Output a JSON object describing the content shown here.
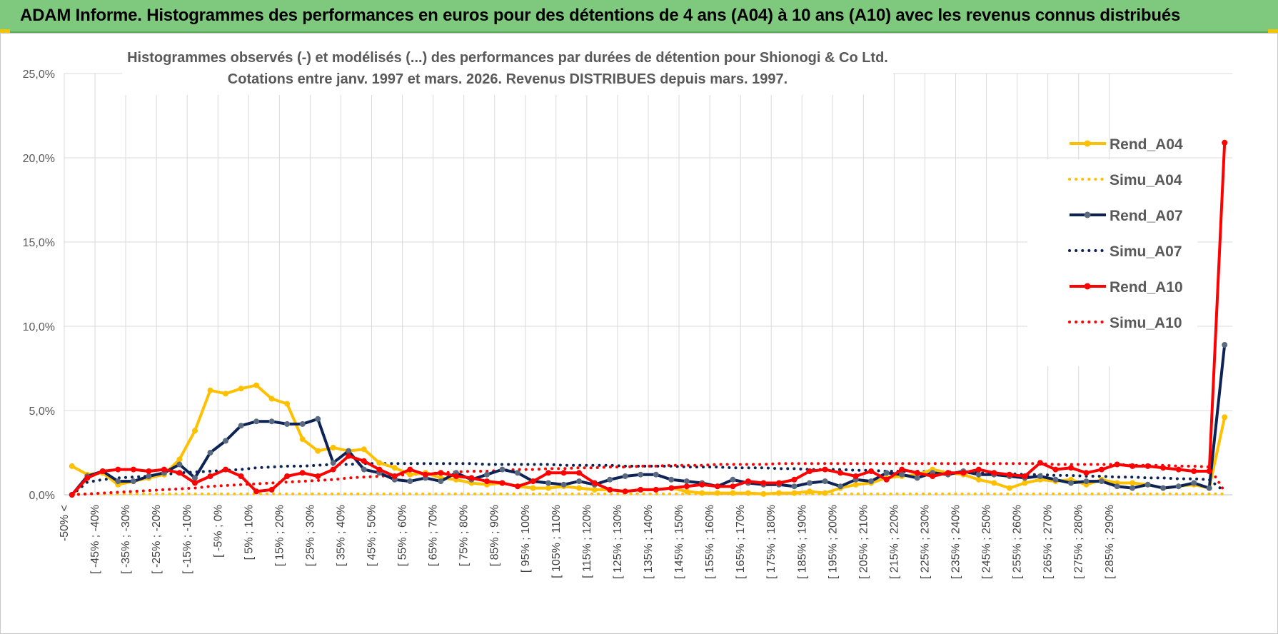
{
  "banner": {
    "title": "ADAM Informe. Histogrammes des performances en euros pour des détentions de 4 ans (A04) à 10 ans (A10) avec les revenus connus distribués",
    "color": "#7fc97f"
  },
  "chart_data": {
    "type": "line",
    "title_line1": "Histogrammes observés (-) et modélisés (...) des performances par durées de détention pour Shionogi & Co Ltd.",
    "title_line2": "Cotations entre janv. 1997 et mars. 2026.  Revenus DISTRIBUES depuis mars. 1997.",
    "xlabel": "",
    "ylabel": "",
    "ylim": [
      0,
      25
    ],
    "y_ticks": [
      "0,0%",
      "5,0%",
      "10,0%",
      "15,0%",
      "20,0%",
      "25,0%"
    ],
    "grid": true,
    "legend_position": "right",
    "x_tick_labels": [
      "-50% <",
      "[ -45% ; -40%",
      "[ -35% ; -30%",
      "[ -25% ; -20%",
      "[ -15% ; -10%",
      "[ -5% ; 0%",
      "[ 5% ; 10%",
      "[ 15% ; 20%",
      "[ 25% ; 30%",
      "[ 35% ; 40%",
      "[ 45% ; 50%",
      "[ 55% ; 60%",
      "[ 65% ; 70%",
      "[ 75% ; 80%",
      "[ 85% ; 90%",
      "[ 95% ; 100%",
      "[ 105% ; 110%",
      "[ 115% ; 120%",
      "[ 125% ; 130%",
      "[ 135% ; 140%",
      "[ 145% ; 150%",
      "[ 155% ; 160%",
      "[ 165% ; 170%",
      "[ 175% ; 180%",
      "[ 185% ; 190%",
      "[ 195% ; 200%",
      "[ 205% ; 210%",
      "[ 215% ; 220%",
      "[ 225% ; 230%",
      "[ 235% ; 240%",
      "[ 245% ; 250%",
      "[ 255% ; 260%",
      "[ 265% ; 270%",
      "[ 275% ; 280%",
      "[ 285% ; 290%"
    ],
    "series": [
      {
        "name": "Rend_A04",
        "style": "solid",
        "color": "#ffc000",
        "values": [
          1.7,
          1.2,
          1.3,
          0.6,
          0.8,
          1.0,
          1.2,
          2.1,
          3.8,
          6.2,
          6.0,
          6.3,
          6.5,
          5.7,
          5.4,
          3.3,
          2.6,
          2.8,
          2.6,
          2.7,
          1.9,
          1.6,
          1.2,
          1.3,
          1.0,
          0.9,
          0.7,
          0.6,
          0.7,
          0.5,
          0.4,
          0.4,
          0.5,
          0.4,
          0.3,
          0.3,
          0.2,
          0.3,
          0.3,
          0.4,
          0.2,
          0.1,
          0.1,
          0.1,
          0.1,
          0.05,
          0.1,
          0.1,
          0.2,
          0.1,
          0.4,
          0.6,
          0.7,
          1.0,
          1.1,
          1.2,
          1.5,
          1.3,
          1.2,
          0.9,
          0.7,
          0.4,
          0.7,
          0.9,
          0.8,
          0.9,
          0.6,
          0.9,
          0.7,
          0.7,
          0.6,
          0.4,
          0.5,
          0.6,
          0.4,
          4.6
        ]
      },
      {
        "name": "Simu_A04",
        "style": "dotted",
        "color": "#ffc000",
        "values": [
          0.05,
          0.05,
          0.05,
          0.05,
          0.05,
          0.05,
          0.05,
          0.05,
          0.05,
          0.05,
          0.05,
          0.05,
          0.05,
          0.05,
          0.05,
          0.05,
          0.05,
          0.05,
          0.05,
          0.05,
          0.05,
          0.05,
          0.05,
          0.05,
          0.05,
          0.05,
          0.05,
          0.05,
          0.05,
          0.05,
          0.05,
          0.05,
          0.05,
          0.05,
          0.05,
          0.05,
          0.05,
          0.05,
          0.05,
          0.05,
          0.05,
          0.05,
          0.05,
          0.05,
          0.05,
          0.05,
          0.05,
          0.05,
          0.05,
          0.05,
          0.05,
          0.05,
          0.05,
          0.05,
          0.05,
          0.05,
          0.05,
          0.05,
          0.05,
          0.05,
          0.05,
          0.05,
          0.05,
          0.05,
          0.05,
          0.05,
          0.05,
          0.05,
          0.05,
          0.05,
          0.05,
          0.05,
          0.05,
          0.05,
          0.05,
          0.05
        ]
      },
      {
        "name": "Rend_A07",
        "style": "solid",
        "color": "#0d2356",
        "values": [
          0.0,
          1.1,
          1.4,
          0.8,
          0.8,
          1.1,
          1.3,
          1.8,
          1.0,
          2.5,
          3.2,
          4.1,
          4.35,
          4.35,
          4.2,
          4.2,
          4.5,
          1.9,
          2.6,
          1.5,
          1.3,
          0.9,
          0.8,
          1.0,
          0.8,
          1.3,
          0.9,
          1.2,
          1.5,
          1.3,
          0.8,
          0.7,
          0.6,
          0.8,
          0.6,
          0.9,
          1.1,
          1.2,
          1.2,
          0.9,
          0.8,
          0.7,
          0.5,
          0.9,
          0.7,
          0.6,
          0.6,
          0.5,
          0.7,
          0.8,
          0.5,
          0.9,
          0.8,
          1.3,
          1.2,
          1.0,
          1.3,
          1.2,
          1.4,
          1.2,
          1.2,
          1.1,
          1.0,
          1.1,
          0.9,
          0.7,
          0.8,
          0.8,
          0.5,
          0.4,
          0.6,
          0.4,
          0.5,
          0.7,
          0.4,
          8.9
        ]
      },
      {
        "name": "Simu_A07",
        "style": "dotted",
        "color": "#0d2356",
        "values": [
          0.0,
          0.75,
          0.9,
          1.0,
          1.05,
          1.1,
          1.2,
          1.3,
          1.35,
          1.4,
          1.45,
          1.5,
          1.6,
          1.65,
          1.7,
          1.7,
          1.75,
          1.8,
          1.8,
          1.85,
          1.85,
          1.85,
          1.85,
          1.85,
          1.85,
          1.85,
          1.85,
          1.8,
          1.8,
          1.8,
          1.8,
          1.8,
          1.75,
          1.75,
          1.75,
          1.75,
          1.7,
          1.7,
          1.7,
          1.7,
          1.65,
          1.65,
          1.65,
          1.6,
          1.6,
          1.6,
          1.55,
          1.55,
          1.5,
          1.5,
          1.5,
          1.45,
          1.45,
          1.4,
          1.4,
          1.4,
          1.35,
          1.35,
          1.3,
          1.3,
          1.25,
          1.25,
          1.2,
          1.2,
          1.15,
          1.15,
          1.1,
          1.1,
          1.05,
          1.05,
          1.0,
          1.0,
          0.95,
          0.95,
          0.9,
          0.2
        ]
      },
      {
        "name": "Rend_A10",
        "style": "solid",
        "color": "#ff0000",
        "values": [
          0.0,
          1.0,
          1.4,
          1.5,
          1.5,
          1.4,
          1.5,
          1.3,
          0.7,
          1.1,
          1.5,
          1.1,
          0.2,
          0.3,
          1.1,
          1.3,
          1.1,
          1.5,
          2.3,
          2.0,
          1.5,
          1.1,
          1.5,
          1.2,
          1.3,
          1.1,
          1.0,
          0.8,
          0.7,
          0.5,
          0.8,
          1.3,
          1.3,
          1.3,
          0.7,
          0.3,
          0.2,
          0.3,
          0.3,
          0.4,
          0.5,
          0.6,
          0.5,
          0.5,
          0.8,
          0.7,
          0.7,
          0.9,
          1.4,
          1.5,
          1.3,
          1.1,
          1.4,
          0.9,
          1.5,
          1.3,
          1.1,
          1.3,
          1.3,
          1.5,
          1.3,
          1.2,
          1.1,
          1.9,
          1.5,
          1.6,
          1.3,
          1.5,
          1.8,
          1.7,
          1.7,
          1.6,
          1.5,
          1.4,
          1.4,
          20.9
        ]
      },
      {
        "name": "Simu_A10",
        "style": "dotted",
        "color": "#ff0000",
        "values": [
          0.0,
          0.05,
          0.1,
          0.15,
          0.2,
          0.25,
          0.3,
          0.35,
          0.4,
          0.5,
          0.55,
          0.6,
          0.65,
          0.7,
          0.75,
          0.8,
          0.85,
          0.9,
          1.0,
          1.05,
          1.1,
          1.15,
          1.2,
          1.25,
          1.3,
          1.35,
          1.4,
          1.4,
          1.45,
          1.5,
          1.5,
          1.55,
          1.55,
          1.6,
          1.6,
          1.65,
          1.65,
          1.7,
          1.7,
          1.75,
          1.75,
          1.75,
          1.8,
          1.8,
          1.8,
          1.8,
          1.85,
          1.85,
          1.85,
          1.85,
          1.85,
          1.85,
          1.85,
          1.85,
          1.85,
          1.85,
          1.85,
          1.85,
          1.85,
          1.85,
          1.85,
          1.85,
          1.85,
          1.85,
          1.8,
          1.8,
          1.8,
          1.8,
          1.8,
          1.75,
          1.75,
          1.75,
          1.7,
          1.7,
          1.65,
          0.2
        ]
      }
    ]
  }
}
